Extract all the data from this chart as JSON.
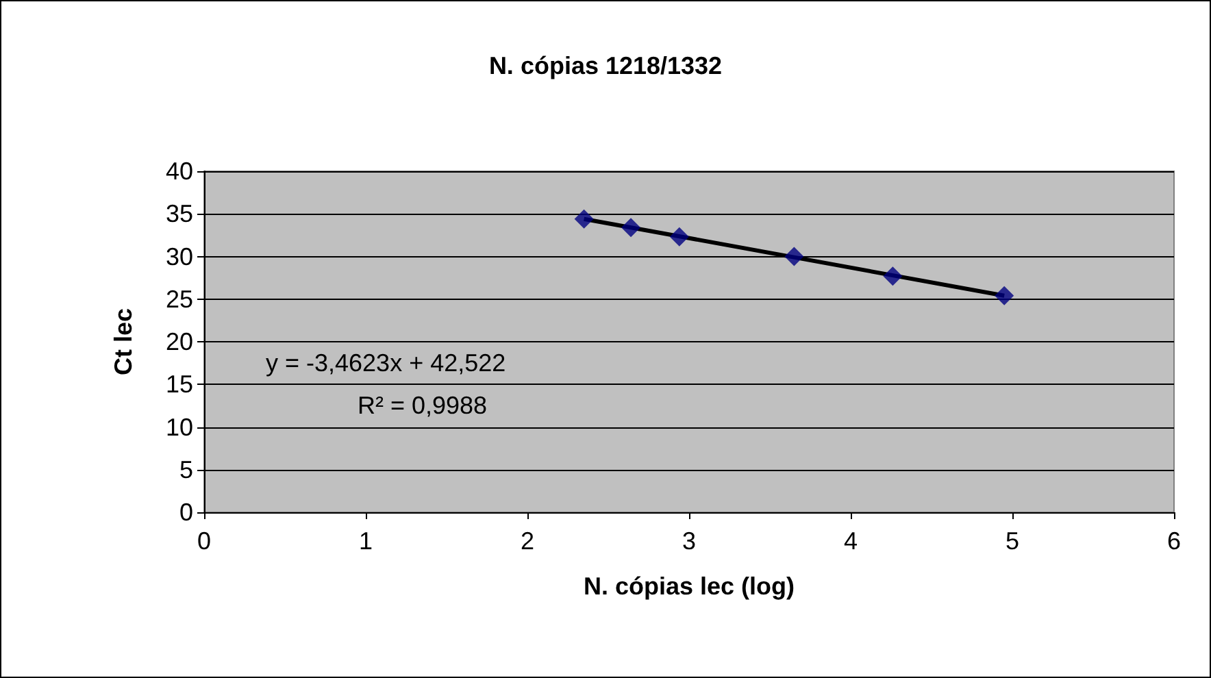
{
  "chart_data": {
    "type": "scatter",
    "title": "N. cópias 1218/1332",
    "xlabel": "N. cópias lec (log)",
    "ylabel": "Ct lec",
    "x": [
      2.35,
      2.64,
      2.94,
      3.65,
      4.26,
      4.95
    ],
    "series": [
      {
        "color": "#000080",
        "marker": "diamond",
        "values": [
          34.4,
          33.4,
          32.3,
          30.0,
          27.7,
          25.4
        ]
      },
      {
        "type": "line",
        "color": "#000000",
        "marker": "none",
        "x": [
          2.35,
          4.95
        ],
        "values": [
          34.4,
          25.4
        ]
      }
    ],
    "xlim": [
      0,
      6
    ],
    "xticks": [
      0,
      1,
      2,
      3,
      4,
      5,
      6
    ],
    "ylim": [
      0,
      40
    ],
    "yticks": [
      0,
      5,
      10,
      15,
      20,
      25,
      30,
      35,
      40
    ],
    "grid": "y",
    "annotations": [
      "y = -3,4623x + 42,522",
      "R² = 0,9988"
    ]
  }
}
